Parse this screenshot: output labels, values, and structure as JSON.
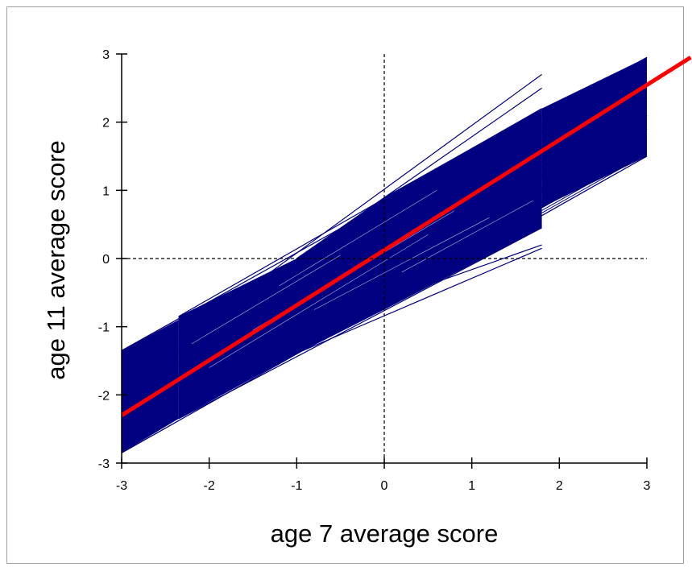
{
  "chart_data": {
    "type": "line",
    "xlabel": "age 7 average score",
    "ylabel": "age 11 average score",
    "xlim": [
      -3,
      3
    ],
    "ylim": [
      -3,
      3
    ],
    "xticks": [
      "-3",
      "-2",
      "-1",
      "0",
      "1",
      "2",
      "3"
    ],
    "yticks": [
      "-3",
      "-2",
      "-1",
      "0",
      "1",
      "2",
      "3"
    ],
    "reference_lines": {
      "x": 0,
      "y": 0,
      "style": "dashed"
    },
    "series": [
      {
        "role": "individual-school-lines",
        "color": "#000080",
        "lines": [
          {
            "x": [
              -3,
              3
            ],
            "y": [
              -1.35,
              2.95
            ]
          },
          {
            "x": [
              -3,
              3
            ],
            "y": [
              -1.6,
              2.7
            ]
          },
          {
            "x": [
              -3,
              3
            ],
            "y": [
              -1.8,
              2.5
            ]
          },
          {
            "x": [
              -3,
              3
            ],
            "y": [
              -2.05,
              2.3
            ]
          },
          {
            "x": [
              -3,
              3
            ],
            "y": [
              -2.3,
              2.1
            ]
          },
          {
            "x": [
              -3,
              3
            ],
            "y": [
              -2.55,
              1.9
            ]
          },
          {
            "x": [
              -3,
              3
            ],
            "y": [
              -2.85,
              1.5
            ]
          },
          {
            "x": [
              -2.35,
              1.8
            ],
            "y": [
              -0.85,
              2.2
            ]
          },
          {
            "x": [
              -2.35,
              1.8
            ],
            "y": [
              -1.0,
              1.95
            ]
          },
          {
            "x": [
              -2.35,
              1.8
            ],
            "y": [
              -1.3,
              1.7
            ]
          },
          {
            "x": [
              -2.35,
              1.8
            ],
            "y": [
              -1.5,
              1.5
            ]
          },
          {
            "x": [
              -2.35,
              1.8
            ],
            "y": [
              -1.75,
              1.25
            ]
          },
          {
            "x": [
              -2.35,
              1.8
            ],
            "y": [
              -2.0,
              1.0
            ]
          },
          {
            "x": [
              -2.35,
              1.8
            ],
            "y": [
              -2.2,
              0.75
            ]
          },
          {
            "x": [
              -2.35,
              1.8
            ],
            "y": [
              -2.35,
              0.45
            ]
          },
          {
            "x": [
              -1.3,
              1.8
            ],
            "y": [
              -0.2,
              2.7
            ]
          },
          {
            "x": [
              -1.0,
              1.8
            ],
            "y": [
              0.0,
              2.5
            ]
          },
          {
            "x": [
              -1.2,
              1.8
            ],
            "y": [
              -1.5,
              0.15
            ]
          },
          {
            "x": [
              -0.3,
              1.8
            ],
            "y": [
              -0.75,
              0.2
            ]
          },
          {
            "x": [
              1.8,
              3
            ],
            "y": [
              1.3,
              2.1
            ]
          },
          {
            "x": [
              1.8,
              3
            ],
            "y": [
              0.75,
              1.9
            ]
          }
        ]
      },
      {
        "role": "average-line",
        "color": "#ff0000",
        "x": [
          -3,
          3.5
        ],
        "y": [
          -2.3,
          2.95
        ]
      }
    ]
  }
}
